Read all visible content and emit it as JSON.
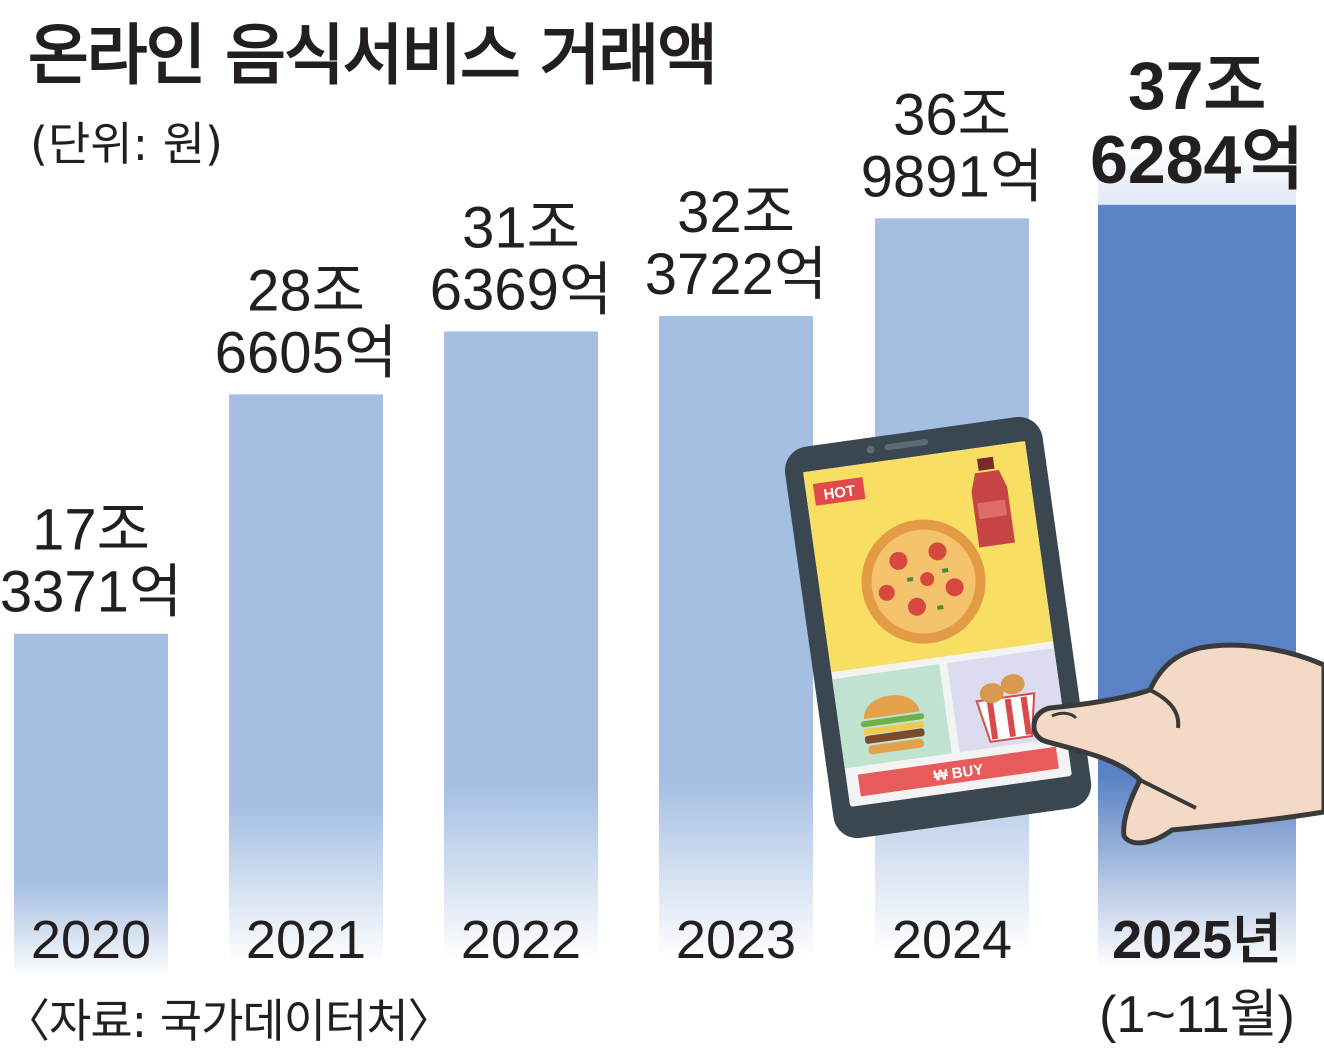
{
  "title": "온라인 음식서비스 거래액",
  "unit_note": "(단위: 원)",
  "source": "〈자료: 국가데이터처〉",
  "chart_data": {
    "type": "bar",
    "title": "온라인 음식서비스 거래액",
    "ylabel": "(단위: 원)",
    "categories": [
      "2020",
      "2021",
      "2022",
      "2023",
      "2024",
      "2025년"
    ],
    "category_notes": [
      "",
      "",
      "",
      "",
      "",
      "(1~11월)"
    ],
    "values": [
      173371,
      286605,
      316369,
      323722,
      369891,
      376284
    ],
    "value_unit": "억원",
    "labels": [
      [
        "17조",
        "3371억"
      ],
      [
        "28조",
        "6605억"
      ],
      [
        "31조",
        "6369억"
      ],
      [
        "32조",
        "3722억"
      ],
      [
        "36조",
        "9891억"
      ],
      [
        "37조",
        "6284억"
      ]
    ],
    "highlight_index": 5,
    "ylim": [
      0,
      400000
    ],
    "grid": false,
    "legend": "none"
  },
  "colors": {
    "bar": "#a5bfe3",
    "bar_highlight": "#5a82c4",
    "text": "#231f20",
    "phone_body": "#3a4750",
    "hot_badge": "#e04a4a",
    "buy_button": "#e85b5b"
  },
  "illustration": {
    "hot_badge": "HOT",
    "buy_button": "₩  BUY",
    "icons": [
      "smartphone-icon",
      "pizza-icon",
      "soda-bottle-icon",
      "burger-icon",
      "fried-chicken-icon",
      "hand-icon"
    ]
  }
}
